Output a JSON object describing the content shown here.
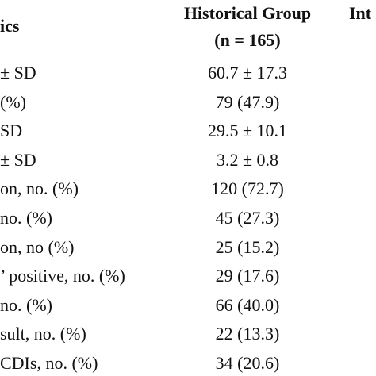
{
  "header": {
    "first_column": "ics",
    "group": "Historical Group",
    "group_n": "(n = 165)",
    "next_column": "Int"
  },
  "table": {
    "rows": [
      [
        "± SD",
        "60.7 ± 17.3"
      ],
      [
        "(%)",
        "79 (47.9)"
      ],
      [
        "SD",
        "29.5 ± 10.1"
      ],
      [
        "± SD",
        "3.2 ± 0.8"
      ],
      [
        "on, no. (%)",
        "120 (72.7)"
      ],
      [
        "no. (%)",
        "45 (27.3)"
      ],
      [
        "on, no (%)",
        "25 (15.2)"
      ],
      [
        "’ positive, no. (%)",
        "29 (17.6)"
      ],
      [
        "no. (%)",
        "66 (40.0)"
      ],
      [
        "sult, no. (%)",
        "22 (13.3)"
      ],
      [
        "CDIs, no. (%)",
        "34 (20.6)"
      ]
    ]
  }
}
